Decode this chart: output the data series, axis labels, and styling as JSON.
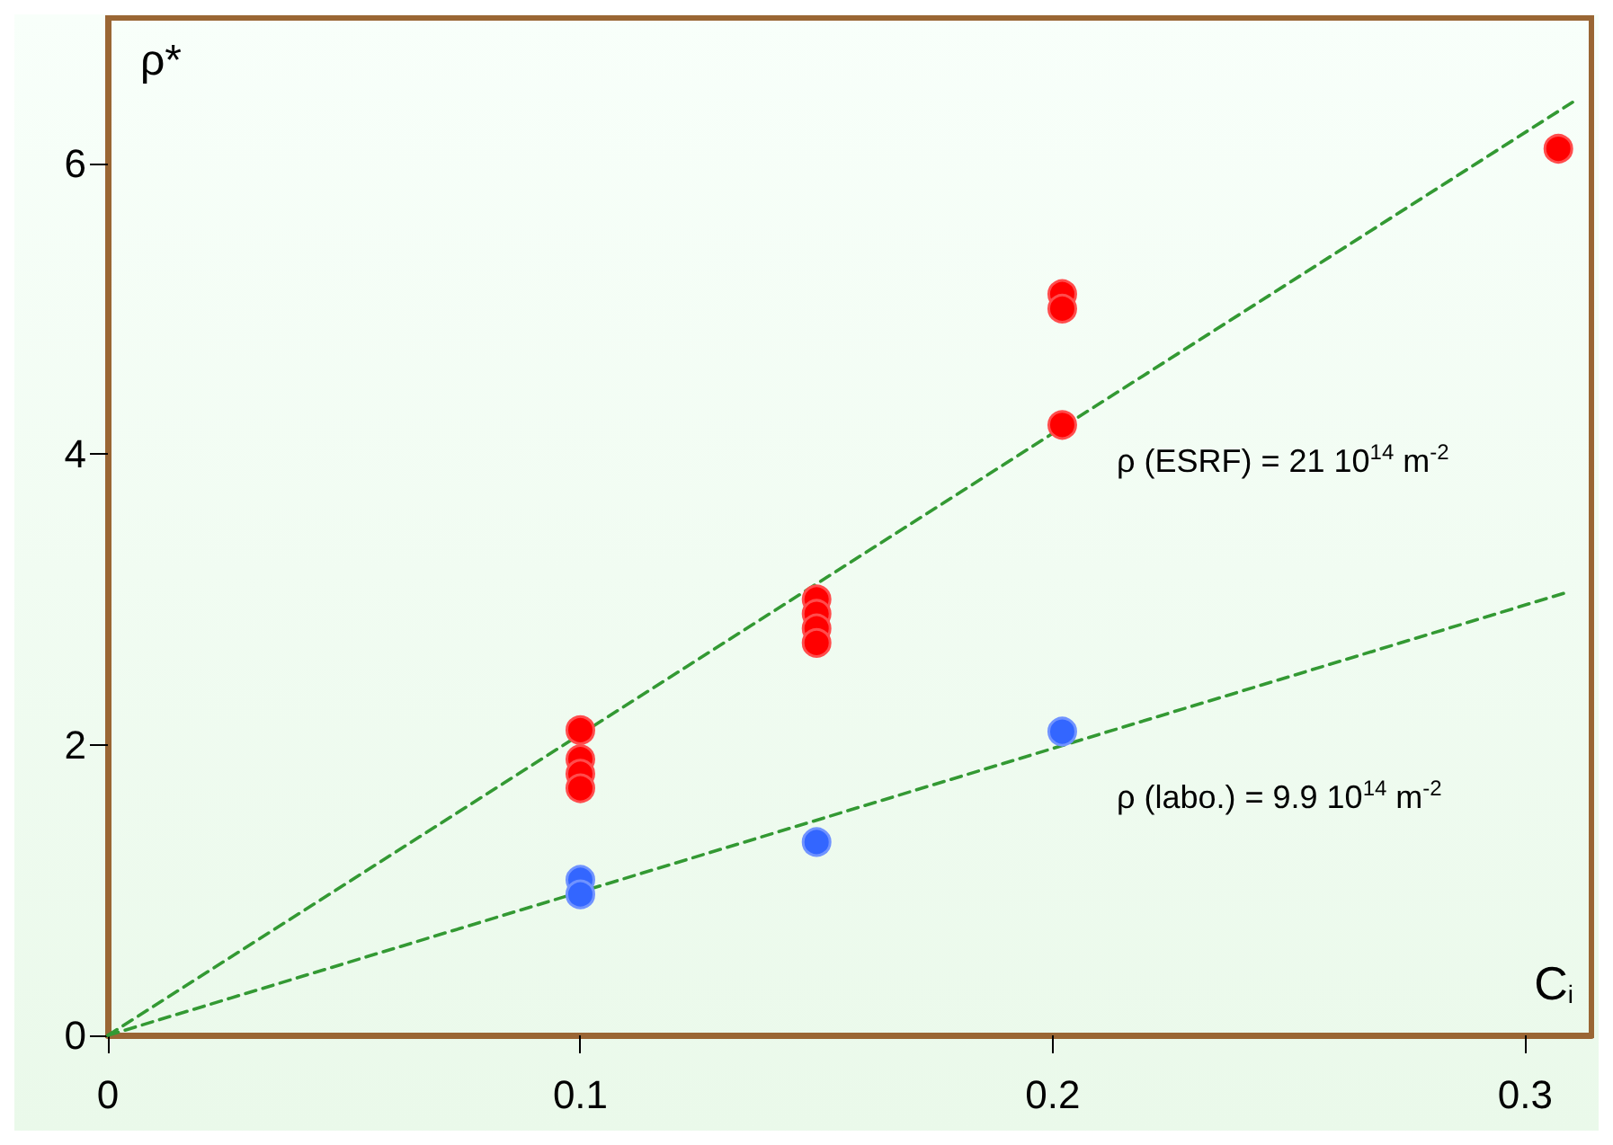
{
  "chart_data": {
    "type": "scatter",
    "xlabel": "C$_{i}$",
    "ylabel": "ρ*",
    "xlim": [
      0,
      0.314
    ],
    "ylim": [
      0,
      7
    ],
    "xticks": [
      0,
      0.1,
      0.2,
      0.3
    ],
    "yticks": [
      0,
      2,
      4,
      6
    ],
    "marker": "circle",
    "series": [
      {
        "type": "line",
        "color": "#339933",
        "line_style": "dashed",
        "marker": "none",
        "x": [
          0,
          0.31
        ],
        "values": [
          0,
          6.42
        ]
      },
      {
        "type": "line",
        "color": "#339933",
        "line_style": "dashed",
        "marker": "none",
        "x": [
          0,
          0.309
        ],
        "values": [
          0,
          3.05
        ]
      },
      {
        "color": "#ff0000",
        "x": [
          0.1,
          0.1,
          0.1,
          0.1,
          0.15,
          0.15,
          0.15,
          0.15,
          0.202,
          0.202,
          0.202,
          0.307
        ],
        "values": [
          2.1,
          1.9,
          1.8,
          1.7,
          3.0,
          2.9,
          2.8,
          2.7,
          5.1,
          5.0,
          4.2,
          6.1
        ]
      },
      {
        "color": "#3366ff",
        "x": [
          0.1,
          0.1,
          0.15,
          0.202
        ],
        "values": [
          1.07,
          0.97,
          1.33,
          2.09
        ]
      }
    ],
    "annotations": [
      "ρ (ESRF) = 21 10$^{14}$ m$^{-2}$",
      "ρ (labo.) = 9.9 10$^{14}$ m$^{-2}$"
    ]
  }
}
